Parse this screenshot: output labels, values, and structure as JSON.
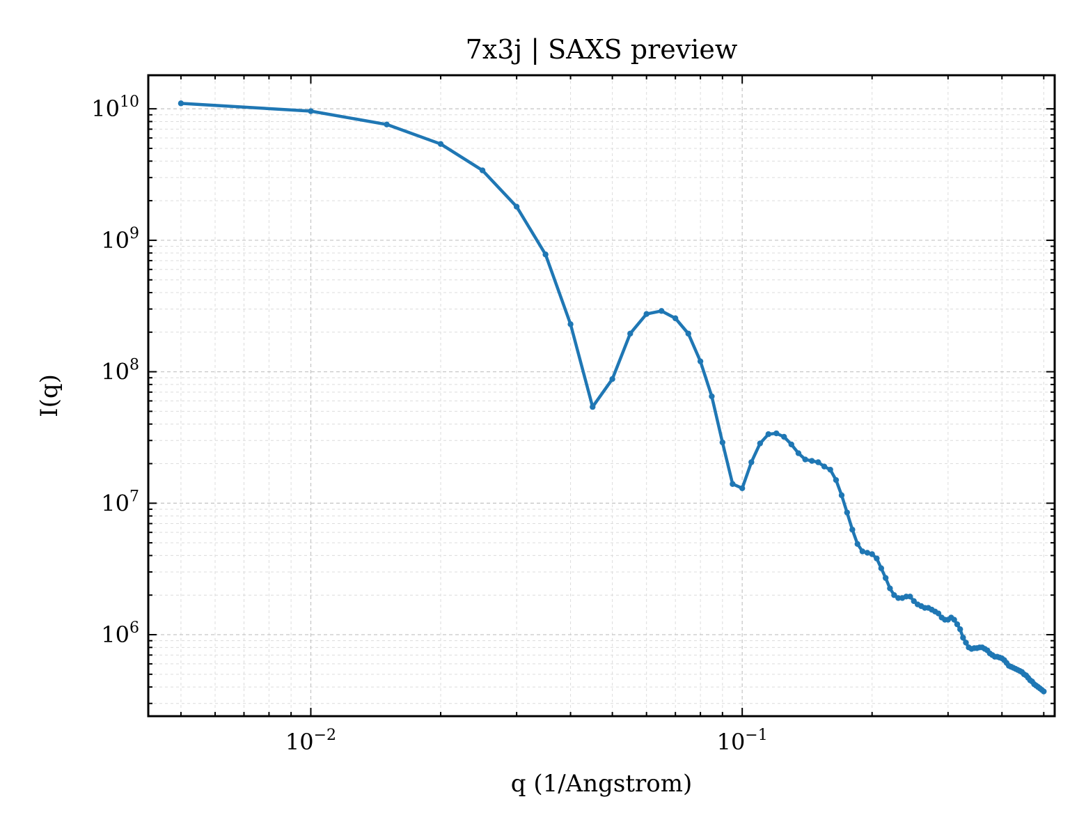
{
  "chart_data": {
    "type": "line",
    "title": "7x3j | SAXS preview",
    "xlabel": "q (1/Angstrom)",
    "ylabel": "I(q)",
    "xscale": "log",
    "yscale": "log",
    "xlim": [
      0.0042,
      0.53
    ],
    "ylim": [
      240000,
      18000000000
    ],
    "grid": true,
    "x_ticks": [
      {
        "base": "10",
        "exp": "−2",
        "value": 0.01
      },
      {
        "base": "10",
        "exp": "−1",
        "value": 0.1
      }
    ],
    "y_ticks": [
      {
        "base": "10",
        "exp": "10",
        "value": 10000000000.0
      },
      {
        "base": "10",
        "exp": "9",
        "value": 1000000000.0
      },
      {
        "base": "10",
        "exp": "8",
        "value": 100000000.0
      },
      {
        "base": "10",
        "exp": "7",
        "value": 10000000.0
      },
      {
        "base": "10",
        "exp": "6",
        "value": 1000000.0
      }
    ],
    "colors": {
      "line": "#1f77b4"
    },
    "series": [
      {
        "x": [
          0.005,
          0.01,
          0.015,
          0.02,
          0.025,
          0.03,
          0.035,
          0.04,
          0.045,
          0.05,
          0.055,
          0.06,
          0.065,
          0.07,
          0.075,
          0.08,
          0.085,
          0.09,
          0.095,
          0.1,
          0.105,
          0.11,
          0.115,
          0.12,
          0.125,
          0.13,
          0.135,
          0.14,
          0.145,
          0.15,
          0.155,
          0.16,
          0.165,
          0.17,
          0.175,
          0.18,
          0.185,
          0.19,
          0.195,
          0.2,
          0.205,
          0.21,
          0.215,
          0.22,
          0.225,
          0.23,
          0.235,
          0.24,
          0.245,
          0.25,
          0.255,
          0.26,
          0.265,
          0.27,
          0.275,
          0.28,
          0.285,
          0.29,
          0.295,
          0.3,
          0.305,
          0.31,
          0.315,
          0.32,
          0.325,
          0.33,
          0.335,
          0.34,
          0.345,
          0.35,
          0.355,
          0.36,
          0.365,
          0.37,
          0.375,
          0.38,
          0.385,
          0.39,
          0.395,
          0.4,
          0.405,
          0.41,
          0.415,
          0.42,
          0.425,
          0.43,
          0.435,
          0.44,
          0.445,
          0.45,
          0.455,
          0.46,
          0.465,
          0.47,
          0.475,
          0.48,
          0.485,
          0.49,
          0.495,
          0.5
        ],
        "y": [
          11000000000,
          9600000000,
          7600000000,
          5400000000,
          3400000000,
          1800000000,
          780000000,
          230000000,
          54000000,
          88000000,
          195000000,
          275000000,
          290000000,
          255000000,
          195000000,
          120000000,
          65000000,
          29000000,
          14000000,
          13000000,
          20500000,
          28500000,
          33500000,
          34000000,
          32000000,
          28000000,
          24000000,
          21500000,
          21000000,
          20500000,
          19000000,
          18000000,
          15000000,
          11500000,
          8500000,
          6300000,
          4900000,
          4300000,
          4200000,
          4100000,
          3800000,
          3200000,
          2700000,
          2250000,
          2000000,
          1900000,
          1900000,
          1950000,
          1950000,
          1800000,
          1700000,
          1650000,
          1600000,
          1600000,
          1550000,
          1500000,
          1450000,
          1350000,
          1300000,
          1300000,
          1350000,
          1300000,
          1200000,
          1100000,
          950000,
          870000,
          800000,
          780000,
          790000,
          790000,
          800000,
          800000,
          780000,
          760000,
          720000,
          700000,
          680000,
          680000,
          670000,
          660000,
          640000,
          610000,
          580000,
          570000,
          560000,
          550000,
          540000,
          530000,
          520000,
          500000,
          490000,
          470000,
          450000,
          440000,
          420000,
          410000,
          400000,
          390000,
          380000,
          370000
        ]
      }
    ]
  }
}
